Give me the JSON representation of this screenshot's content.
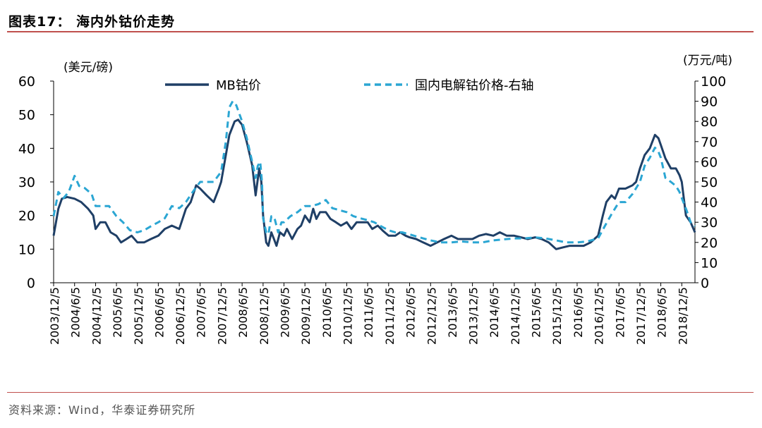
{
  "figure": {
    "title": "图表17：  海内外钴价走势",
    "source": "资料来源：Wind，华泰证券研究所"
  },
  "chart_data": {
    "type": "line",
    "y_left_label": "(美元/磅)",
    "y_right_label": "(万元/吨)",
    "y_left_lim": [
      0,
      60
    ],
    "y_left_ticks": [
      0,
      10,
      20,
      30,
      40,
      50,
      60
    ],
    "y_right_lim": [
      0,
      100
    ],
    "y_right_ticks": [
      0,
      10,
      20,
      30,
      40,
      50,
      60,
      70,
      80,
      90,
      100
    ],
    "x_tick_labels": [
      "2003/12/5",
      "2004/6/5",
      "2004/12/5",
      "2005/6/5",
      "2005/12/5",
      "2006/6/5",
      "2006/12/5",
      "2007/6/5",
      "2007/12/5",
      "2008/6/5",
      "2008/12/5",
      "2009/6/5",
      "2009/12/5",
      "2010/6/5",
      "2010/12/5",
      "2011/6/5",
      "2011/12/5",
      "2012/6/5",
      "2012/12/5",
      "2013/6/5",
      "2013/12/5",
      "2014/6/5",
      "2014/12/5",
      "2015/6/5",
      "2015/12/5",
      "2016/6/5",
      "2016/12/5",
      "2017/6/5",
      "2017/12/5",
      "2018/6/5",
      "2018/12/5"
    ],
    "x_lim": [
      "2003/12/5",
      "2019/3/30"
    ],
    "legend_position": "top",
    "series": [
      {
        "name": "MB钴价",
        "axis": "left",
        "color": "#1f3f66",
        "style": "solid",
        "points": [
          [
            "2003/12/5",
            14
          ],
          [
            "2004/1/15",
            22
          ],
          [
            "2004/2/15",
            25
          ],
          [
            "2004/4/1",
            25.5
          ],
          [
            "2004/6/5",
            25
          ],
          [
            "2004/8/1",
            24
          ],
          [
            "2004/10/1",
            22
          ],
          [
            "2004/11/15",
            20
          ],
          [
            "2004/12/5",
            16
          ],
          [
            "2005/1/15",
            18
          ],
          [
            "2005/3/1",
            18
          ],
          [
            "2005/4/15",
            15
          ],
          [
            "2005/6/5",
            14
          ],
          [
            "2005/7/15",
            12
          ],
          [
            "2005/9/1",
            13
          ],
          [
            "2005/10/15",
            14
          ],
          [
            "2005/12/5",
            12
          ],
          [
            "2006/2/1",
            12
          ],
          [
            "2006/4/1",
            13
          ],
          [
            "2006/6/5",
            14
          ],
          [
            "2006/8/1",
            16
          ],
          [
            "2006/10/1",
            17
          ],
          [
            "2006/12/5",
            16
          ],
          [
            "2007/2/1",
            22
          ],
          [
            "2007/3/15",
            24
          ],
          [
            "2007/5/1",
            29
          ],
          [
            "2007/6/5",
            28
          ],
          [
            "2007/8/1",
            26
          ],
          [
            "2007/10/1",
            24
          ],
          [
            "2007/11/15",
            28
          ],
          [
            "2007/12/5",
            30
          ],
          [
            "2008/1/15",
            38
          ],
          [
            "2008/2/15",
            44
          ],
          [
            "2008/4/1",
            48
          ],
          [
            "2008/5/1",
            48.5
          ],
          [
            "2008/6/5",
            47
          ],
          [
            "2008/7/15",
            42
          ],
          [
            "2008/9/1",
            35
          ],
          [
            "2008/10/1",
            26
          ],
          [
            "2008/11/1",
            34
          ],
          [
            "2008/11/20",
            30
          ],
          [
            "2008/12/5",
            20
          ],
          [
            "2009/1/1",
            12
          ],
          [
            "2009/1/20",
            11
          ],
          [
            "2009/2/15",
            15
          ],
          [
            "2009/3/10",
            13
          ],
          [
            "2009/4/1",
            11
          ],
          [
            "2009/5/1",
            15
          ],
          [
            "2009/6/5",
            14
          ],
          [
            "2009/7/1",
            16
          ],
          [
            "2009/8/15",
            13
          ],
          [
            "2009/10/1",
            16
          ],
          [
            "2009/11/1",
            17
          ],
          [
            "2009/12/5",
            20
          ],
          [
            "2010/1/15",
            18
          ],
          [
            "2010/2/15",
            22
          ],
          [
            "2010/3/15",
            19
          ],
          [
            "2010/4/15",
            21
          ],
          [
            "2010/6/5",
            21
          ],
          [
            "2010/7/15",
            19
          ],
          [
            "2010/9/1",
            18
          ],
          [
            "2010/10/15",
            17
          ],
          [
            "2010/12/5",
            18
          ],
          [
            "2011/1/15",
            16
          ],
          [
            "2011/3/1",
            18
          ],
          [
            "2011/4/15",
            18
          ],
          [
            "2011/6/5",
            18
          ],
          [
            "2011/7/15",
            16
          ],
          [
            "2011/9/1",
            17
          ],
          [
            "2011/10/15",
            15.5
          ],
          [
            "2011/12/5",
            14
          ],
          [
            "2012/2/1",
            14
          ],
          [
            "2012/3/15",
            15
          ],
          [
            "2012/5/1",
            14
          ],
          [
            "2012/6/5",
            13.5
          ],
          [
            "2012/8/1",
            13
          ],
          [
            "2012/10/1",
            12
          ],
          [
            "2012/12/5",
            11
          ],
          [
            "2013/2/1",
            12
          ],
          [
            "2013/4/1",
            13
          ],
          [
            "2013/6/5",
            14
          ],
          [
            "2013/8/1",
            13
          ],
          [
            "2013/10/1",
            13
          ],
          [
            "2013/12/5",
            13
          ],
          [
            "2014/2/1",
            14
          ],
          [
            "2014/4/1",
            14.5
          ],
          [
            "2014/6/5",
            14
          ],
          [
            "2014/8/1",
            15
          ],
          [
            "2014/10/1",
            14
          ],
          [
            "2014/12/5",
            14
          ],
          [
            "2015/2/1",
            13.5
          ],
          [
            "2015/4/1",
            13
          ],
          [
            "2015/6/5",
            13.5
          ],
          [
            "2015/8/1",
            13
          ],
          [
            "2015/10/1",
            12
          ],
          [
            "2015/12/5",
            10
          ],
          [
            "2016/2/1",
            10.5
          ],
          [
            "2016/4/1",
            11
          ],
          [
            "2016/6/5",
            11
          ],
          [
            "2016/8/1",
            11
          ],
          [
            "2016/10/1",
            12
          ],
          [
            "2016/12/5",
            14
          ],
          [
            "2017/1/15",
            20
          ],
          [
            "2017/2/15",
            24
          ],
          [
            "2017/4/1",
            26
          ],
          [
            "2017/5/1",
            25
          ],
          [
            "2017/6/5",
            28
          ],
          [
            "2017/8/1",
            28
          ],
          [
            "2017/10/1",
            29
          ],
          [
            "2017/11/1",
            30
          ],
          [
            "2017/12/5",
            34
          ],
          [
            "2018/1/15",
            38
          ],
          [
            "2018/3/1",
            40
          ],
          [
            "2018/4/15",
            44
          ],
          [
            "2018/5/15",
            43
          ],
          [
            "2018/6/5",
            41
          ],
          [
            "2018/7/15",
            37
          ],
          [
            "2018/9/1",
            34
          ],
          [
            "2018/10/15",
            34
          ],
          [
            "2018/11/15",
            32
          ],
          [
            "2018/12/5",
            30
          ],
          [
            "2019/1/10",
            20
          ],
          [
            "2019/2/20",
            18
          ],
          [
            "2019/3/30",
            15
          ]
        ]
      },
      {
        "name": "国内电解钴价格-右轴",
        "axis": "right",
        "color": "#2ba6d3",
        "style": "dashed",
        "points": [
          [
            "2003/12/5",
            33
          ],
          [
            "2004/1/15",
            45
          ],
          [
            "2004/3/1",
            42
          ],
          [
            "2004/4/15",
            45
          ],
          [
            "2004/6/5",
            53
          ],
          [
            "2004/7/15",
            48
          ],
          [
            "2004/9/1",
            47
          ],
          [
            "2004/11/1",
            44
          ],
          [
            "2004/12/5",
            38
          ],
          [
            "2005/2/1",
            38
          ],
          [
            "2005/4/1",
            38
          ],
          [
            "2005/6/5",
            33
          ],
          [
            "2005/8/1",
            30
          ],
          [
            "2005/10/1",
            26
          ],
          [
            "2005/12/5",
            25
          ],
          [
            "2006/2/1",
            26
          ],
          [
            "2006/4/1",
            28
          ],
          [
            "2006/6/5",
            30
          ],
          [
            "2006/8/1",
            32
          ],
          [
            "2006/10/1",
            38
          ],
          [
            "2006/12/5",
            37
          ],
          [
            "2007/2/1",
            40
          ],
          [
            "2007/4/1",
            45
          ],
          [
            "2007/6/5",
            50
          ],
          [
            "2007/8/1",
            50
          ],
          [
            "2007/10/1",
            50
          ],
          [
            "2007/12/5",
            55
          ],
          [
            "2008/1/15",
            70
          ],
          [
            "2008/2/15",
            87
          ],
          [
            "2008/3/15",
            90
          ],
          [
            "2008/4/15",
            88
          ],
          [
            "2008/6/5",
            80
          ],
          [
            "2008/7/15",
            72
          ],
          [
            "2008/9/1",
            60
          ],
          [
            "2008/10/1",
            52
          ],
          [
            "2008/10/20",
            58
          ],
          [
            "2008/11/10",
            60
          ],
          [
            "2008/11/25",
            50
          ],
          [
            "2008/12/5",
            32
          ],
          [
            "2009/1/1",
            25
          ],
          [
            "2009/1/20",
            24
          ],
          [
            "2009/2/15",
            33
          ],
          [
            "2009/3/15",
            32
          ],
          [
            "2009/4/15",
            25
          ],
          [
            "2009/5/15",
            30
          ],
          [
            "2009/6/5",
            30
          ],
          [
            "2009/8/1",
            33
          ],
          [
            "2009/10/1",
            35
          ],
          [
            "2009/12/5",
            38
          ],
          [
            "2010/2/1",
            38
          ],
          [
            "2010/4/1",
            39
          ],
          [
            "2010/6/5",
            41
          ],
          [
            "2010/8/1",
            37
          ],
          [
            "2010/10/1",
            36
          ],
          [
            "2010/12/5",
            35
          ],
          [
            "2011/2/1",
            33
          ],
          [
            "2011/4/1",
            32
          ],
          [
            "2011/6/5",
            31
          ],
          [
            "2011/8/1",
            30
          ],
          [
            "2011/10/1",
            28
          ],
          [
            "2011/12/5",
            26
          ],
          [
            "2012/2/1",
            25
          ],
          [
            "2012/4/1",
            25
          ],
          [
            "2012/6/5",
            24
          ],
          [
            "2012/8/1",
            23
          ],
          [
            "2012/10/1",
            22
          ],
          [
            "2012/12/5",
            21
          ],
          [
            "2013/3/1",
            20
          ],
          [
            "2013/6/5",
            20
          ],
          [
            "2013/9/1",
            20.5
          ],
          [
            "2013/12/5",
            20
          ],
          [
            "2014/3/1",
            20
          ],
          [
            "2014/6/5",
            21
          ],
          [
            "2014/9/1",
            21.5
          ],
          [
            "2014/12/5",
            22
          ],
          [
            "2015/3/1",
            22
          ],
          [
            "2015/6/5",
            22.5
          ],
          [
            "2015/9/1",
            22
          ],
          [
            "2015/12/5",
            21
          ],
          [
            "2016/3/1",
            20
          ],
          [
            "2016/6/5",
            20
          ],
          [
            "2016/9/1",
            20.5
          ],
          [
            "2016/12/5",
            22
          ],
          [
            "2017/2/1",
            28
          ],
          [
            "2017/4/1",
            34
          ],
          [
            "2017/6/5",
            40
          ],
          [
            "2017/8/1",
            40
          ],
          [
            "2017/10/1",
            44
          ],
          [
            "2017/12/5",
            50
          ],
          [
            "2018/1/15",
            58
          ],
          [
            "2018/3/1",
            62
          ],
          [
            "2018/4/15",
            67
          ],
          [
            "2018/5/15",
            65
          ],
          [
            "2018/6/5",
            62
          ],
          [
            "2018/7/15",
            52
          ],
          [
            "2018/9/1",
            50
          ],
          [
            "2018/10/15",
            48
          ],
          [
            "2018/11/15",
            45
          ],
          [
            "2018/12/5",
            42
          ],
          [
            "2019/1/15",
            36
          ],
          [
            "2019/2/20",
            30
          ],
          [
            "2019/3/30",
            28
          ]
        ]
      }
    ]
  }
}
